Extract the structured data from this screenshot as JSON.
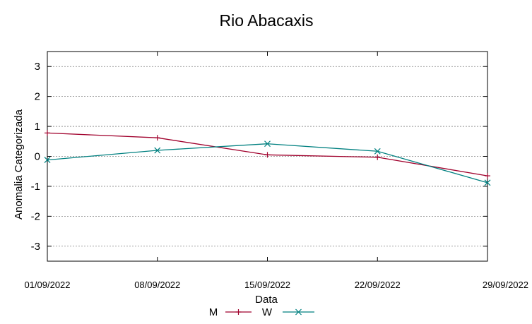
{
  "chart_data": {
    "type": "line",
    "title": "Rio Abacaxis",
    "xlabel": "Data",
    "ylabel": "Anomalia Categorizada",
    "x": [
      "01/09/2022",
      "08/09/2022",
      "15/09/2022",
      "22/09/2022",
      "29/09/2022"
    ],
    "ylim": [
      -3.5,
      3.5
    ],
    "yticks": [
      -3,
      -2,
      -1,
      0,
      1,
      2,
      3
    ],
    "grid": true,
    "legend_position": "bottom-center",
    "series": [
      {
        "name": "M",
        "color": "#a0002c",
        "marker": "plus",
        "values": [
          0.78,
          0.62,
          0.05,
          -0.03,
          -0.65
        ]
      },
      {
        "name": "W",
        "color": "#008080",
        "marker": "x",
        "values": [
          -0.12,
          0.2,
          0.42,
          0.17,
          -0.88
        ]
      }
    ]
  }
}
